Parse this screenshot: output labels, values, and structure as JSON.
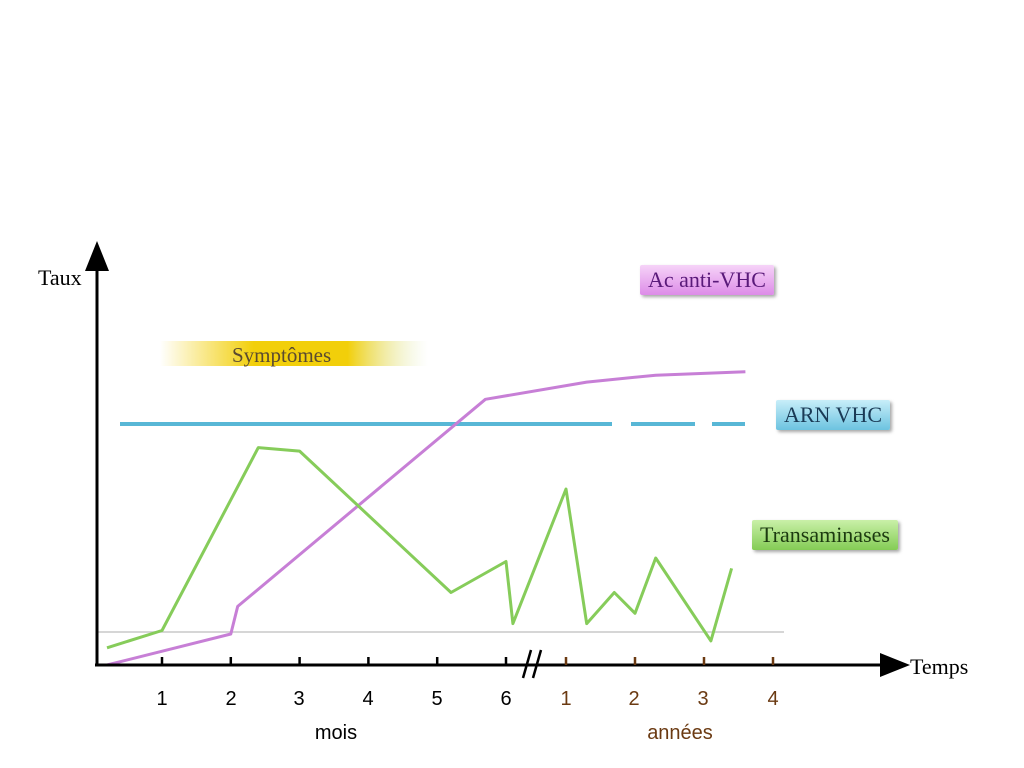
{
  "axes": {
    "y_label": "Taux",
    "x_label": "Temps"
  },
  "ticks": {
    "months": [
      "1",
      "2",
      "3",
      "4",
      "5",
      "6"
    ],
    "years": [
      "1",
      "2",
      "3",
      "4"
    ]
  },
  "units": {
    "months": "mois",
    "years": "années"
  },
  "labels": {
    "symptoms": "Symptômes",
    "antibody": "Ac anti-VHC",
    "rna": "ARN VHC",
    "transaminases": "Transaminases"
  },
  "colors": {
    "antibody": "#c77fd6",
    "rna": "#58b7d6",
    "transaminases": "#86cc5a",
    "symptoms_band": "#f2cf0a",
    "years_text": "#6b3a12",
    "baseline": "#c8c8c8",
    "axis": "#000000"
  },
  "chart_data": {
    "type": "line",
    "x_axis_break": "between month 6 and year 1",
    "series": [
      {
        "name": "Ac anti-VHC",
        "points": [
          [
            "0.2 mois",
            0.0
          ],
          [
            "2 mois",
            0.09
          ],
          [
            "2.1 mois",
            0.17
          ],
          [
            "5.7 mois",
            0.77
          ],
          [
            "1.3 années",
            0.82
          ],
          [
            "2.3 années",
            0.84
          ],
          [
            "3.6 années",
            0.85
          ]
        ]
      },
      {
        "name": "ARN VHC",
        "points": [
          [
            "0.3 mois",
            0.59
          ],
          [
            "1.7 années",
            0.59
          ]
        ],
        "continuation": "dashed until 3.6 années"
      },
      {
        "name": "Transaminases",
        "points": [
          [
            "0.2 mois",
            0.05
          ],
          [
            "1.0 mois",
            0.1
          ],
          [
            "2.4 mois",
            0.63
          ],
          [
            "3.0 mois",
            0.62
          ],
          [
            "5.2 mois",
            0.21
          ],
          [
            "6.0 mois",
            0.3
          ],
          [
            "6.1 mois",
            0.12
          ],
          [
            "1.0 années",
            0.51
          ],
          [
            "1.3 années",
            0.12
          ],
          [
            "1.7 années",
            0.21
          ],
          [
            "2.0 années",
            0.15
          ],
          [
            "2.3 années",
            0.31
          ],
          [
            "3.1 années",
            0.07
          ],
          [
            "3.4 années",
            0.28
          ]
        ]
      }
    ]
  }
}
